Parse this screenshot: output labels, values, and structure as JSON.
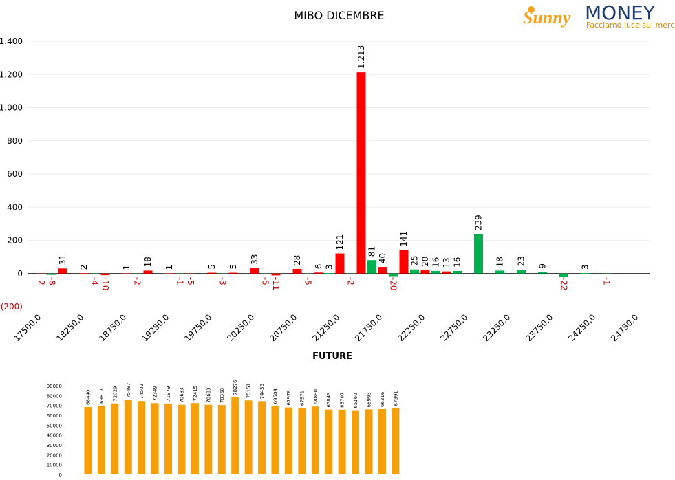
{
  "chart_data": [
    {
      "type": "bar",
      "title": "MIBO DICEMBRE",
      "x_label": "FUTURE",
      "categories": [
        "17500,0",
        null,
        "18250,0",
        null,
        "18750,0",
        null,
        "19250,0",
        null,
        "19750,0",
        null,
        "20250,0",
        null,
        "20750,0",
        null,
        "21250,0",
        null,
        "21750,0",
        null,
        "22250,0",
        null,
        "22750,0",
        null,
        "23250,0",
        null,
        "23750,0",
        null,
        "24250,0",
        null,
        "24750,0"
      ],
      "series": [
        {
          "color": "#00b050",
          "values": [
            null,
            -8,
            null,
            -4,
            null,
            -2,
            null,
            -1,
            null,
            -3,
            null,
            -5,
            null,
            -5,
            3,
            -2,
            81,
            -20,
            25,
            16,
            16,
            239,
            18,
            23,
            9,
            -22,
            3,
            -1,
            null
          ]
        },
        {
          "color": "#ff0000",
          "values": [
            -2,
            31,
            2,
            -10,
            1,
            18,
            1,
            -5,
            5,
            5,
            33,
            -11,
            28,
            6,
            121,
            1213,
            40,
            141,
            20,
            13,
            null,
            null,
            null,
            null,
            null,
            null,
            null,
            null,
            null
          ],
          "value_labels": [
            "-2",
            "31",
            "2",
            "-10",
            "1",
            "18",
            "1",
            "-5",
            "5",
            "5",
            "33",
            "-11",
            "28",
            "6",
            "121",
            "1.213",
            "40",
            "141",
            "20",
            "13",
            null,
            null,
            null,
            null,
            null,
            null,
            null,
            null,
            null
          ]
        }
      ],
      "ylim": [
        -200,
        1400
      ],
      "yticks": [
        {
          "value": -200,
          "label": "(200)"
        },
        0,
        200,
        400,
        600,
        800,
        {
          "value": 1000,
          "label": "1.000"
        },
        {
          "value": 1200,
          "label": "1.200"
        },
        {
          "value": 1400,
          "label": "1.400"
        }
      ],
      "grid": true
    },
    {
      "type": "bar",
      "color": "#f59f0a",
      "values": [
        68440,
        69817,
        72029,
        75497,
        74502,
        72349,
        71979,
        70683,
        72415,
        70683,
        70368,
        78276,
        75151,
        74436,
        69504,
        67978,
        67571,
        68890,
        65843,
        65707,
        65160,
        65993,
        66316,
        67391
      ],
      "ylim": [
        0,
        90000
      ],
      "yticks": [
        0,
        10000,
        20000,
        30000,
        40000,
        50000,
        60000,
        70000,
        80000,
        90000
      ]
    }
  ],
  "logo": {
    "brand": "Sunny",
    "name": "MONEY",
    "tagline": "Facciamo luce sui mercati"
  }
}
